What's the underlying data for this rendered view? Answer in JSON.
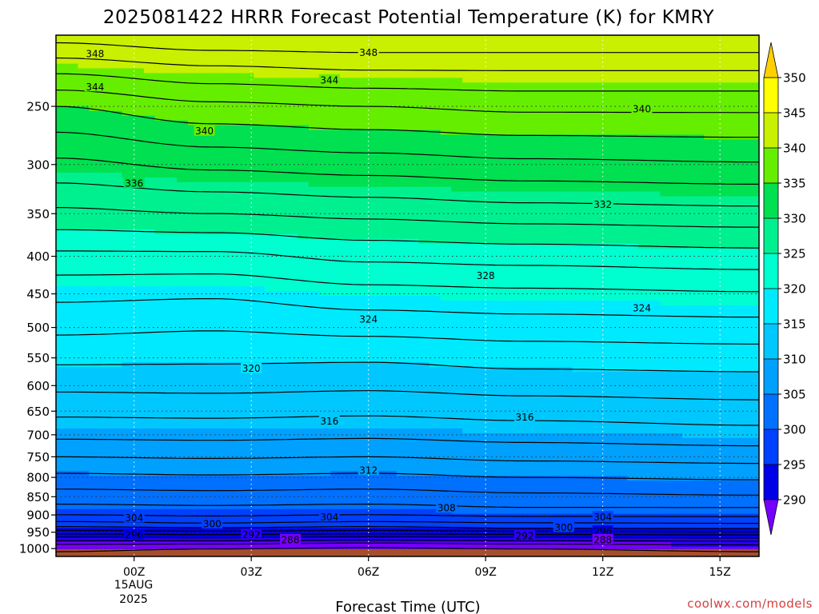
{
  "chart_data": {
    "type": "contour",
    "title": "2025081422 HRRR Forecast Potential Temperature (K) for KMRY",
    "xlabel": "Forecast Time (UTC)",
    "ylabel": "",
    "x_ticks": [
      "00Z",
      "03Z",
      "06Z",
      "09Z",
      "12Z",
      "15Z"
    ],
    "x_tick_hours": [
      0,
      3,
      6,
      9,
      12,
      15
    ],
    "x_date_label": [
      "15AUG",
      "2025"
    ],
    "xlim_hours": [
      -2,
      16
    ],
    "y_ticks": [
      250,
      300,
      350,
      400,
      450,
      500,
      550,
      600,
      650,
      700,
      750,
      800,
      850,
      900,
      950,
      1000
    ],
    "ylim_hpa": [
      1025,
      200
    ],
    "y_scale": "log-pressure",
    "grid": "dotted",
    "colorbar": {
      "levels": [
        290,
        295,
        300,
        305,
        310,
        315,
        320,
        325,
        330,
        335,
        340,
        345,
        350
      ],
      "colors": [
        "#7600ff",
        "#2a00ff",
        "#0000e8",
        "#0040ff",
        "#0070ff",
        "#00a0ff",
        "#00c8ff",
        "#00eaff",
        "#00ffd0",
        "#00f090",
        "#00e050",
        "#66ee00",
        "#c8f000",
        "#ffff00",
        "#ffd000"
      ],
      "labels": [
        "290",
        "295",
        "300",
        "305",
        "310",
        "315",
        "320",
        "325",
        "330",
        "335",
        "340",
        "345",
        "350"
      ],
      "extend": "both"
    },
    "terrain_color": "#a54e2c",
    "surface_pressure_hpa": 1002,
    "contour_interval_k": 2,
    "profiles": [
      {
        "hour": -2,
        "pressure": [
          1000,
          980,
          960,
          950,
          940,
          920,
          900,
          880,
          850,
          820,
          800,
          750,
          700,
          650,
          600,
          550,
          500,
          450,
          400,
          350,
          300,
          250,
          220,
          200
        ],
        "theta": [
          288,
          291,
          295,
          297,
          299,
          302,
          304,
          305.5,
          307,
          308.5,
          309.5,
          312,
          314.5,
          316.5,
          318.5,
          320.5,
          322.5,
          324.5,
          327.5,
          331.5,
          335.5,
          340,
          345,
          349
        ]
      },
      {
        "hour": 2,
        "pressure": [
          1000,
          980,
          960,
          950,
          940,
          920,
          900,
          880,
          850,
          820,
          800,
          750,
          700,
          650,
          600,
          550,
          500,
          450,
          400,
          350,
          300,
          250,
          220,
          200
        ],
        "theta": [
          287.5,
          291,
          295.5,
          297.5,
          299.5,
          302.5,
          304.3,
          305.7,
          307.2,
          308.7,
          309.7,
          312.2,
          314.6,
          316.6,
          318.6,
          320.4,
          322.2,
          324.3,
          327.5,
          332,
          336.5,
          341.5,
          346,
          350
        ]
      },
      {
        "hour": 6,
        "pressure": [
          1000,
          980,
          960,
          950,
          940,
          920,
          900,
          880,
          850,
          820,
          800,
          750,
          700,
          650,
          600,
          550,
          500,
          450,
          400,
          350,
          300,
          250,
          220,
          200
        ],
        "theta": [
          287.3,
          290.5,
          295,
          297,
          299,
          302,
          304,
          305.5,
          307,
          308.5,
          309.5,
          312,
          314.4,
          316.4,
          318.4,
          320.3,
          322.7,
          325.2,
          328.5,
          332.5,
          337,
          342,
          346.5,
          350
        ]
      },
      {
        "hour": 10,
        "pressure": [
          1000,
          980,
          960,
          950,
          940,
          920,
          900,
          880,
          850,
          820,
          800,
          750,
          700,
          650,
          600,
          550,
          500,
          450,
          400,
          350,
          300,
          250,
          220,
          200
        ],
        "theta": [
          287.5,
          291,
          295.2,
          297.5,
          299.8,
          302.3,
          304.5,
          306,
          307.5,
          309,
          310,
          312.5,
          314.8,
          316.8,
          318.8,
          320.8,
          323,
          325.5,
          328.8,
          333,
          337.5,
          342.5,
          346.5,
          350
        ]
      },
      {
        "hour": 16,
        "pressure": [
          1000,
          980,
          960,
          950,
          940,
          920,
          900,
          880,
          850,
          820,
          800,
          750,
          700,
          650,
          600,
          550,
          500,
          450,
          400,
          350,
          300,
          250,
          220,
          200
        ],
        "theta": [
          288,
          291.5,
          295.5,
          297.8,
          300,
          302.5,
          304.5,
          306,
          307.8,
          309.3,
          310.3,
          312.8,
          315.2,
          317.2,
          319,
          321,
          323.2,
          325.8,
          329.2,
          333.3,
          337.8,
          342.5,
          346.5,
          350
        ]
      }
    ],
    "contour_labels": [
      {
        "value": "348",
        "hour": -1.0,
        "pressure": 212
      },
      {
        "value": "348",
        "hour": 6.0,
        "pressure": 211
      },
      {
        "value": "344",
        "hour": -1.0,
        "pressure": 235
      },
      {
        "value": "344",
        "hour": 5.0,
        "pressure": 230
      },
      {
        "value": "340",
        "hour": 1.8,
        "pressure": 270
      },
      {
        "value": "340",
        "hour": 13.0,
        "pressure": 252
      },
      {
        "value": "336",
        "hour": 0.0,
        "pressure": 318
      },
      {
        "value": "332",
        "hour": 12.0,
        "pressure": 340
      },
      {
        "value": "328",
        "hour": 9.0,
        "pressure": 425
      },
      {
        "value": "324",
        "hour": 6.0,
        "pressure": 487
      },
      {
        "value": "324",
        "hour": 13.0,
        "pressure": 470
      },
      {
        "value": "320",
        "hour": 3.0,
        "pressure": 568
      },
      {
        "value": "316",
        "hour": 5.0,
        "pressure": 670
      },
      {
        "value": "316",
        "hour": 10.0,
        "pressure": 662
      },
      {
        "value": "312",
        "hour": 6.0,
        "pressure": 782
      },
      {
        "value": "308",
        "hour": 8.0,
        "pressure": 880
      },
      {
        "value": "304",
        "hour": 0.0,
        "pressure": 908
      },
      {
        "value": "304",
        "hour": 5.0,
        "pressure": 905
      },
      {
        "value": "304",
        "hour": 12.0,
        "pressure": 905
      },
      {
        "value": "300",
        "hour": 2.0,
        "pressure": 925
      },
      {
        "value": "300",
        "hour": 11.0,
        "pressure": 935
      },
      {
        "value": "296",
        "hour": 0.0,
        "pressure": 957
      },
      {
        "value": "296",
        "hour": 12.0,
        "pressure": 946
      },
      {
        "value": "292",
        "hour": 3.0,
        "pressure": 957
      },
      {
        "value": "292",
        "hour": 10.0,
        "pressure": 960
      },
      {
        "value": "288",
        "hour": 4.0,
        "pressure": 972
      },
      {
        "value": "288",
        "hour": 12.0,
        "pressure": 972
      }
    ]
  },
  "credit": "coolwx.com/models"
}
